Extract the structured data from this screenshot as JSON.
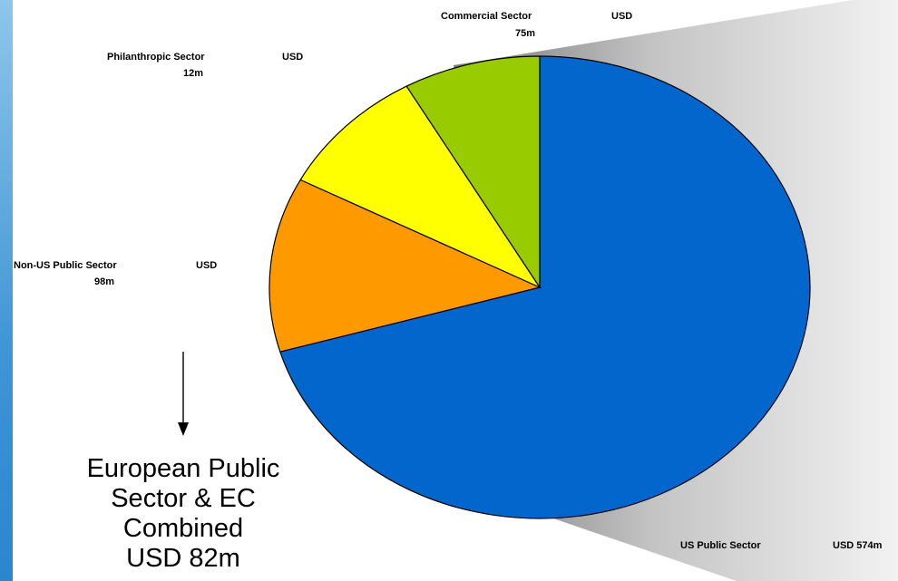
{
  "chart_data": {
    "type": "pie",
    "slices": [
      {
        "label": "US Public Sector",
        "value_label": "USD 574m",
        "value": 574,
        "color": "#0366cc"
      },
      {
        "label": "Non-US Public Sector",
        "value_label": "USD 98m",
        "value": 98,
        "color": "#ff9900"
      },
      {
        "label": "Philanthropic Sector",
        "value_label": "USD 12m",
        "value": 12,
        "color": "#ffff00"
      },
      {
        "label": "Commercial Sector",
        "value_label": "USD 75m",
        "value": 75,
        "color": "#99cc00"
      }
    ],
    "labels": {
      "us_public": {
        "name": "US Public Sector",
        "value": "USD 574m"
      },
      "non_us_public": {
        "name": "Non-US Public Sector",
        "value_top": "USD",
        "value_bottom": "98m"
      },
      "philanthropic": {
        "name": "Philanthropic Sector",
        "value_top": "USD",
        "value_bottom": "12m"
      },
      "commercial": {
        "name": "Commercial Sector",
        "value_top": "USD",
        "value_bottom": "75m"
      }
    },
    "annotation": {
      "lines": [
        "European Public",
        "Sector & EC",
        "Combined",
        "USD 82m"
      ]
    }
  }
}
